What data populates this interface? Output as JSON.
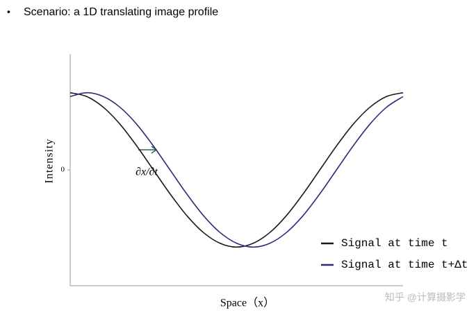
{
  "chart_data": {
    "type": "line",
    "heading": "Scenario: a 1D translating image profile",
    "xlabel": "Space（x）",
    "ylabel": "Intensity",
    "annotation": "∂x/∂t",
    "watermark": "知乎 @计算摄影学",
    "x": [
      0,
      0.05,
      0.1,
      0.15,
      0.2,
      0.25,
      0.3,
      0.35,
      0.4,
      0.45,
      0.5,
      0.55,
      0.6,
      0.65,
      0.7,
      0.75,
      0.8,
      0.85,
      0.9,
      0.95,
      1
    ],
    "series": [
      {
        "name": "Signal at time t",
        "color": "#1a1a1a",
        "values": [
          1,
          0.95,
          0.81,
          0.59,
          0.31,
          0,
          -0.31,
          -0.59,
          -0.81,
          -0.95,
          -1,
          -0.95,
          -0.81,
          -0.59,
          -0.31,
          0,
          0.31,
          0.59,
          0.81,
          0.95,
          1
        ]
      },
      {
        "name": "Signal at time t+Δt",
        "color": "#2e2a7a",
        "values": [
          0.95,
          1,
          0.95,
          0.81,
          0.59,
          0.31,
          0,
          -0.31,
          -0.59,
          -0.81,
          -0.95,
          -1,
          -0.95,
          -0.81,
          -0.59,
          -0.31,
          0,
          0.31,
          0.59,
          0.81,
          0.95
        ]
      }
    ],
    "xlim": [
      0,
      1
    ],
    "ylim": [
      -1.5,
      1.5
    ],
    "yticks": [
      0
    ]
  }
}
